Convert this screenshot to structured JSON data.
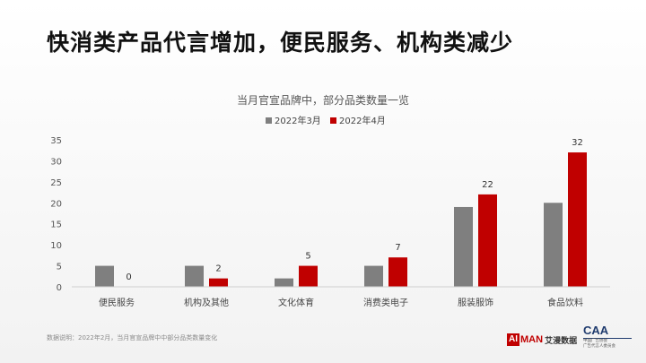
{
  "headline": "快消类产品代言增加，便民服务、机构类减少",
  "footnote": "数据说明：2022年2月，当月官宣品牌中中部分品类数量变化",
  "logos": {
    "aiman_ai": "AI",
    "aiman_man": "MAN",
    "aiman_cn": "艾漫数据",
    "caa_mark": "CAA",
    "caa_sub1": "中国广告协会",
    "caa_sub2": "广告代言人委员会"
  },
  "colors": {
    "march": "#7f7f7f",
    "april": "#c00000"
  },
  "chart_data": {
    "type": "bar",
    "title": "当月官宣品牌中，部分品类数量一览",
    "categories": [
      "便民服务",
      "机构及其他",
      "文化体育",
      "消费类电子",
      "服装服饰",
      "食品饮料"
    ],
    "series": [
      {
        "name": "2022年3月",
        "values": [
          5,
          5,
          2,
          5,
          19,
          20
        ]
      },
      {
        "name": "2022年4月",
        "values": [
          0,
          2,
          5,
          7,
          22,
          32
        ]
      }
    ],
    "data_labels_series": "2022年4月",
    "ylim": [
      0,
      35
    ],
    "yticks": [
      0,
      5,
      10,
      15,
      20,
      25,
      30,
      35
    ],
    "grid": false,
    "legend_position": "top-center"
  }
}
